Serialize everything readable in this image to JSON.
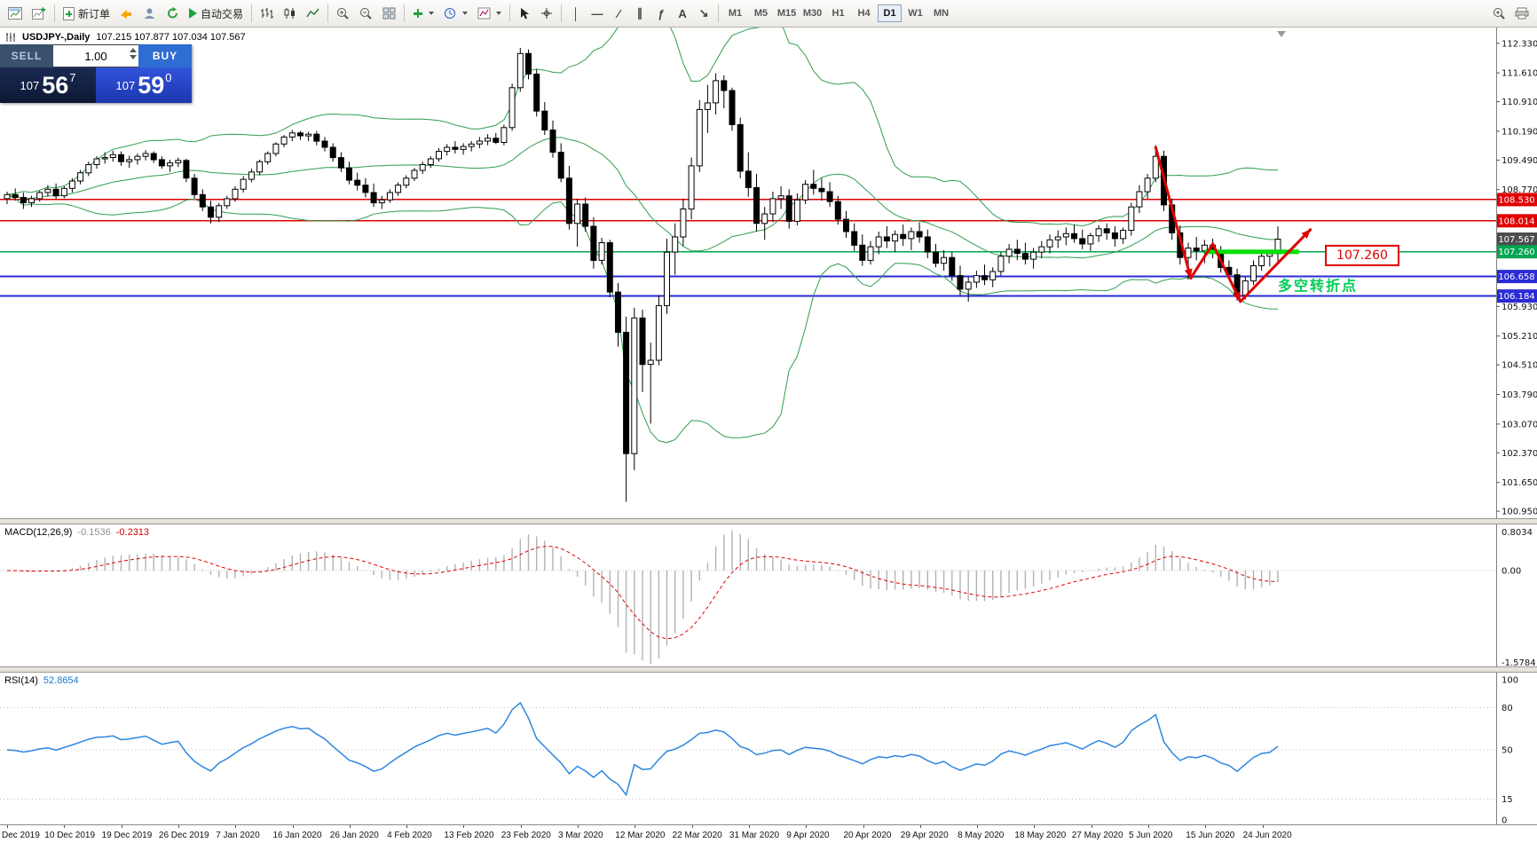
{
  "toolbar": {
    "new_order_label": "新订单",
    "auto_trading_label": "自动交易",
    "timeframes": [
      "M1",
      "M5",
      "M15",
      "M30",
      "H1",
      "H4",
      "D1",
      "W1",
      "MN"
    ],
    "active_timeframe": "D1",
    "draw_tools": [
      {
        "name": "vertical-line-tool",
        "glyph": "│"
      },
      {
        "name": "horizontal-line-tool",
        "glyph": "—"
      },
      {
        "name": "trendline-tool",
        "glyph": "∕"
      },
      {
        "name": "channel-tool",
        "glyph": "∥"
      },
      {
        "name": "fibonacci-tool",
        "glyph": "ƒ"
      },
      {
        "name": "text-tool",
        "glyph": "A"
      },
      {
        "name": "arrow-tool",
        "glyph": "↘"
      }
    ]
  },
  "chart": {
    "symbol_title": "USDJPY-,Daily",
    "ohlc_text": "107.215 107.877 107.034 107.567",
    "price_axis_labels": [
      "112.330",
      "111.610",
      "110.910",
      "110.190",
      "109.490",
      "108.770",
      "105.930",
      "105.210",
      "104.510",
      "103.790",
      "103.070",
      "102.370",
      "101.650",
      "100.950"
    ],
    "price_badges": [
      {
        "text": "108.530",
        "price": 108.53,
        "bg": "#e00000"
      },
      {
        "text": "108.014",
        "price": 108.014,
        "bg": "#e00000"
      },
      {
        "text": "107.567",
        "price": 107.567,
        "bg": "#4d4d4d"
      },
      {
        "text": "107.260",
        "price": 107.26,
        "bg": "#00a651"
      },
      {
        "text": "106.658",
        "price": 106.658,
        "bg": "#2b2bd5"
      },
      {
        "text": "106.184",
        "price": 106.184,
        "bg": "#2b2bd5"
      }
    ],
    "hlines": [
      {
        "price": 108.53,
        "color": "#e00000",
        "width": 1.4
      },
      {
        "price": 108.014,
        "color": "#e00000",
        "width": 1.4
      },
      {
        "price": 107.26,
        "color": "#00a651",
        "width": 1.4
      },
      {
        "price": 106.658,
        "color": "#2b2bd5",
        "width": 2
      },
      {
        "price": 106.184,
        "color": "#2b2bd5",
        "width": 2
      }
    ],
    "annotations": {
      "zigzag": [
        [
          141,
          109.8
        ],
        [
          145.3,
          106.62
        ],
        [
          148,
          107.45
        ],
        [
          151.4,
          106.05
        ],
        [
          160,
          107.8
        ]
      ],
      "support_segment": {
        "price": 107.26,
        "from": 147,
        "to": 158.6,
        "color": "#00e000"
      },
      "price_label": {
        "text": "107.260",
        "color": "#e00000"
      },
      "turning_point_label": {
        "text": "多空转折点",
        "color": "#00cc55"
      }
    }
  },
  "trade_panel": {
    "sell_label": "SELL",
    "buy_label": "BUY",
    "volume": "1.00",
    "sell_price": {
      "base": "107",
      "pips": "56",
      "frac": "7"
    },
    "buy_price": {
      "base": "107",
      "pips": "59",
      "frac": "0"
    }
  },
  "macd": {
    "name": "MACD(12,26,9)",
    "main_value": "-0.1536",
    "signal_value": "-0.2313",
    "axis_max": "0.8034",
    "axis_zero": "0.00",
    "axis_min": "-1.5784"
  },
  "rsi": {
    "name": "RSI(14)",
    "value": "52.8654",
    "axis_labels": [
      "100",
      "80",
      "50",
      "15",
      "0"
    ],
    "levels": [
      80,
      50,
      15
    ]
  },
  "time_axis": [
    "Dec 2019",
    "10 Dec 2019",
    "19 Dec 2019",
    "26 Dec 2019",
    "7 Jan 2020",
    "16 Jan 2020",
    "26 Jan 2020",
    "4 Feb 2020",
    "13 Feb 2020",
    "23 Feb 2020",
    "3 Mar 2020",
    "12 Mar 2020",
    "22 Mar 2020",
    "31 Mar 2020",
    "9 Apr 2020",
    "20 Apr 2020",
    "29 Apr 2020",
    "8 May 2020",
    "18 May 2020",
    "27 May 2020",
    "5 Jun 2020",
    "15 Jun 2020",
    "24 Jun 2020"
  ],
  "chart_data": {
    "type": "candlestick",
    "symbol": "USDJPY",
    "timeframe": "Daily",
    "price_range": {
      "min": 100.78,
      "max": 112.67
    },
    "indicators": {
      "bollinger": {
        "period": 20,
        "deviation": 2,
        "color": "#2f9e4f"
      },
      "macd": {
        "fast": 12,
        "slow": 26,
        "signal": 9
      },
      "rsi": {
        "period": 14
      }
    },
    "candles": [
      [
        108.55,
        108.72,
        108.42,
        108.65
      ],
      [
        108.65,
        108.8,
        108.5,
        108.58
      ],
      [
        108.58,
        108.7,
        108.3,
        108.45
      ],
      [
        108.45,
        108.62,
        108.35,
        108.55
      ],
      [
        108.55,
        108.75,
        108.48,
        108.7
      ],
      [
        108.7,
        108.88,
        108.6,
        108.78
      ],
      [
        108.78,
        108.92,
        108.55,
        108.62
      ],
      [
        108.62,
        108.85,
        108.56,
        108.8
      ],
      [
        108.8,
        109.05,
        108.7,
        108.98
      ],
      [
        108.98,
        109.25,
        108.9,
        109.18
      ],
      [
        109.18,
        109.45,
        109.1,
        109.38
      ],
      [
        109.38,
        109.58,
        109.28,
        109.52
      ],
      [
        109.52,
        109.68,
        109.4,
        109.55
      ],
      [
        109.55,
        109.72,
        109.45,
        109.62
      ],
      [
        109.62,
        109.7,
        109.35,
        109.45
      ],
      [
        109.45,
        109.6,
        109.3,
        109.5
      ],
      [
        109.5,
        109.65,
        109.38,
        109.58
      ],
      [
        109.58,
        109.73,
        109.48,
        109.65
      ],
      [
        109.65,
        109.7,
        109.42,
        109.5
      ],
      [
        109.5,
        109.58,
        109.28,
        109.35
      ],
      [
        109.35,
        109.5,
        109.2,
        109.42
      ],
      [
        109.42,
        109.55,
        109.32,
        109.48
      ],
      [
        109.48,
        109.52,
        108.95,
        109.05
      ],
      [
        109.05,
        109.15,
        108.55,
        108.65
      ],
      [
        108.65,
        108.78,
        108.25,
        108.35
      ],
      [
        108.35,
        108.5,
        107.95,
        108.1
      ],
      [
        108.1,
        108.45,
        107.98,
        108.38
      ],
      [
        108.38,
        108.62,
        108.3,
        108.55
      ],
      [
        108.55,
        108.85,
        108.48,
        108.78
      ],
      [
        108.78,
        109.1,
        108.7,
        109.02
      ],
      [
        109.02,
        109.28,
        108.95,
        109.2
      ],
      [
        109.2,
        109.5,
        109.12,
        109.45
      ],
      [
        109.45,
        109.7,
        109.38,
        109.65
      ],
      [
        109.65,
        109.92,
        109.58,
        109.88
      ],
      [
        109.88,
        110.1,
        109.8,
        110.05
      ],
      [
        110.05,
        110.22,
        109.95,
        110.15
      ],
      [
        110.15,
        110.2,
        109.98,
        110.08
      ],
      [
        110.08,
        110.18,
        109.95,
        110.12
      ],
      [
        110.12,
        110.2,
        109.85,
        109.95
      ],
      [
        109.95,
        110.05,
        109.7,
        109.8
      ],
      [
        109.8,
        109.9,
        109.45,
        109.55
      ],
      [
        109.55,
        109.68,
        109.2,
        109.3
      ],
      [
        109.3,
        109.45,
        108.9,
        109.0
      ],
      [
        109.0,
        109.18,
        108.75,
        108.88
      ],
      [
        108.88,
        109.05,
        108.58,
        108.7
      ],
      [
        108.7,
        108.92,
        108.35,
        108.45
      ],
      [
        108.45,
        108.62,
        108.3,
        108.52
      ],
      [
        108.52,
        108.78,
        108.45,
        108.7
      ],
      [
        108.7,
        108.95,
        108.62,
        108.88
      ],
      [
        108.88,
        109.12,
        108.8,
        109.05
      ],
      [
        109.05,
        109.3,
        108.98,
        109.24
      ],
      [
        109.24,
        109.45,
        109.15,
        109.38
      ],
      [
        109.38,
        109.58,
        109.3,
        109.52
      ],
      [
        109.52,
        109.78,
        109.45,
        109.7
      ],
      [
        109.7,
        109.88,
        109.6,
        109.8
      ],
      [
        109.8,
        109.95,
        109.65,
        109.75
      ],
      [
        109.75,
        109.9,
        109.62,
        109.82
      ],
      [
        109.82,
        109.95,
        109.7,
        109.88
      ],
      [
        109.88,
        110.05,
        109.78,
        109.95
      ],
      [
        109.95,
        110.12,
        109.85,
        110.02
      ],
      [
        110.02,
        110.15,
        109.88,
        109.92
      ],
      [
        109.92,
        110.35,
        109.85,
        110.28
      ],
      [
        110.28,
        111.35,
        110.2,
        111.25
      ],
      [
        111.25,
        112.22,
        111.15,
        112.08
      ],
      [
        112.08,
        112.18,
        111.45,
        111.58
      ],
      [
        111.58,
        111.7,
        110.55,
        110.68
      ],
      [
        110.68,
        110.9,
        110.1,
        110.22
      ],
      [
        110.22,
        110.45,
        109.55,
        109.68
      ],
      [
        109.68,
        109.9,
        108.95,
        109.05
      ],
      [
        109.05,
        109.35,
        107.8,
        107.95
      ],
      [
        107.95,
        108.55,
        107.38,
        108.42
      ],
      [
        108.42,
        108.58,
        107.75,
        107.88
      ],
      [
        107.88,
        108.1,
        106.85,
        107.05
      ],
      [
        107.05,
        107.6,
        106.95,
        107.48
      ],
      [
        107.48,
        107.55,
        106.15,
        106.28
      ],
      [
        106.28,
        106.5,
        104.95,
        105.3
      ],
      [
        105.3,
        105.68,
        101.18,
        102.35
      ],
      [
        102.35,
        105.9,
        101.95,
        105.65
      ],
      [
        105.65,
        105.85,
        103.85,
        104.52
      ],
      [
        104.52,
        105.05,
        103.08,
        104.62
      ],
      [
        104.62,
        106.2,
        104.5,
        105.95
      ],
      [
        105.95,
        107.58,
        105.75,
        107.25
      ],
      [
        107.25,
        107.95,
        106.7,
        107.62
      ],
      [
        107.62,
        108.55,
        107.4,
        108.3
      ],
      [
        108.3,
        109.55,
        108.05,
        109.35
      ],
      [
        109.35,
        110.95,
        109.2,
        110.72
      ],
      [
        110.72,
        111.32,
        110.15,
        110.88
      ],
      [
        110.88,
        111.6,
        110.6,
        111.42
      ],
      [
        111.42,
        111.55,
        110.75,
        111.18
      ],
      [
        111.18,
        111.25,
        110.2,
        110.35
      ],
      [
        110.35,
        110.52,
        109.05,
        109.22
      ],
      [
        109.22,
        109.68,
        108.6,
        108.82
      ],
      [
        108.82,
        109.15,
        107.75,
        107.95
      ],
      [
        107.95,
        108.35,
        107.55,
        108.18
      ],
      [
        108.18,
        108.72,
        107.98,
        108.55
      ],
      [
        108.55,
        108.85,
        108.3,
        108.62
      ],
      [
        108.62,
        108.78,
        107.82,
        108.0
      ],
      [
        108.0,
        108.68,
        107.9,
        108.52
      ],
      [
        108.52,
        109.0,
        108.42,
        108.9
      ],
      [
        108.9,
        109.25,
        108.65,
        108.8
      ],
      [
        108.8,
        109.05,
        108.5,
        108.72
      ],
      [
        108.72,
        108.95,
        108.35,
        108.48
      ],
      [
        108.48,
        108.62,
        107.92,
        108.05
      ],
      [
        108.05,
        108.25,
        107.6,
        107.75
      ],
      [
        107.75,
        107.95,
        107.28,
        107.42
      ],
      [
        107.42,
        107.68,
        106.92,
        107.05
      ],
      [
        107.05,
        107.52,
        106.95,
        107.38
      ],
      [
        107.38,
        107.75,
        107.2,
        107.62
      ],
      [
        107.62,
        107.88,
        107.35,
        107.52
      ],
      [
        107.52,
        107.78,
        107.25,
        107.68
      ],
      [
        107.68,
        107.92,
        107.4,
        107.58
      ],
      [
        107.58,
        107.85,
        107.3,
        107.75
      ],
      [
        107.75,
        107.98,
        107.48,
        107.62
      ],
      [
        107.62,
        107.8,
        107.1,
        107.25
      ],
      [
        107.25,
        107.45,
        106.88,
        106.98
      ],
      [
        106.98,
        107.3,
        106.8,
        107.12
      ],
      [
        107.12,
        107.25,
        106.55,
        106.68
      ],
      [
        106.68,
        106.92,
        106.2,
        106.35
      ],
      [
        106.35,
        106.65,
        106.05,
        106.52
      ],
      [
        106.52,
        106.8,
        106.38,
        106.68
      ],
      [
        106.68,
        106.95,
        106.45,
        106.58
      ],
      [
        106.58,
        106.88,
        106.4,
        106.78
      ],
      [
        106.78,
        107.25,
        106.68,
        107.15
      ],
      [
        107.15,
        107.45,
        106.98,
        107.32
      ],
      [
        107.32,
        107.55,
        107.05,
        107.22
      ],
      [
        107.22,
        107.48,
        106.95,
        107.08
      ],
      [
        107.08,
        107.35,
        106.85,
        107.25
      ],
      [
        107.25,
        107.52,
        107.1,
        107.38
      ],
      [
        107.38,
        107.68,
        107.22,
        107.55
      ],
      [
        107.55,
        107.78,
        107.35,
        107.62
      ],
      [
        107.62,
        107.85,
        107.42,
        107.7
      ],
      [
        107.7,
        107.92,
        107.48,
        107.58
      ],
      [
        107.58,
        107.8,
        107.32,
        107.45
      ],
      [
        107.45,
        107.72,
        107.28,
        107.65
      ],
      [
        107.65,
        107.9,
        107.5,
        107.82
      ],
      [
        107.82,
        107.95,
        107.55,
        107.72
      ],
      [
        107.72,
        107.88,
        107.38,
        107.58
      ],
      [
        107.58,
        107.85,
        107.45,
        107.78
      ],
      [
        107.78,
        108.45,
        107.65,
        108.35
      ],
      [
        108.35,
        108.88,
        108.2,
        108.72
      ],
      [
        108.72,
        109.15,
        108.55,
        109.05
      ],
      [
        109.05,
        109.85,
        108.95,
        109.58
      ],
      [
        109.58,
        109.72,
        108.25,
        108.4
      ],
      [
        108.4,
        108.55,
        107.55,
        107.72
      ],
      [
        107.72,
        107.9,
        106.95,
        107.12
      ],
      [
        107.12,
        107.48,
        106.58,
        107.35
      ],
      [
        107.35,
        107.62,
        107.05,
        107.28
      ],
      [
        107.28,
        107.55,
        106.98,
        107.42
      ],
      [
        107.42,
        107.58,
        107.1,
        107.22
      ],
      [
        107.22,
        107.4,
        106.75,
        106.88
      ],
      [
        106.88,
        107.05,
        106.58,
        106.7
      ],
      [
        106.7,
        106.85,
        106.07,
        106.2
      ],
      [
        106.2,
        106.65,
        106.1,
        106.55
      ],
      [
        106.55,
        107.05,
        106.45,
        106.92
      ],
      [
        106.92,
        107.25,
        106.8,
        107.15
      ],
      [
        107.15,
        107.3,
        106.9,
        107.21
      ],
      [
        107.215,
        107.877,
        107.034,
        107.567
      ]
    ]
  }
}
